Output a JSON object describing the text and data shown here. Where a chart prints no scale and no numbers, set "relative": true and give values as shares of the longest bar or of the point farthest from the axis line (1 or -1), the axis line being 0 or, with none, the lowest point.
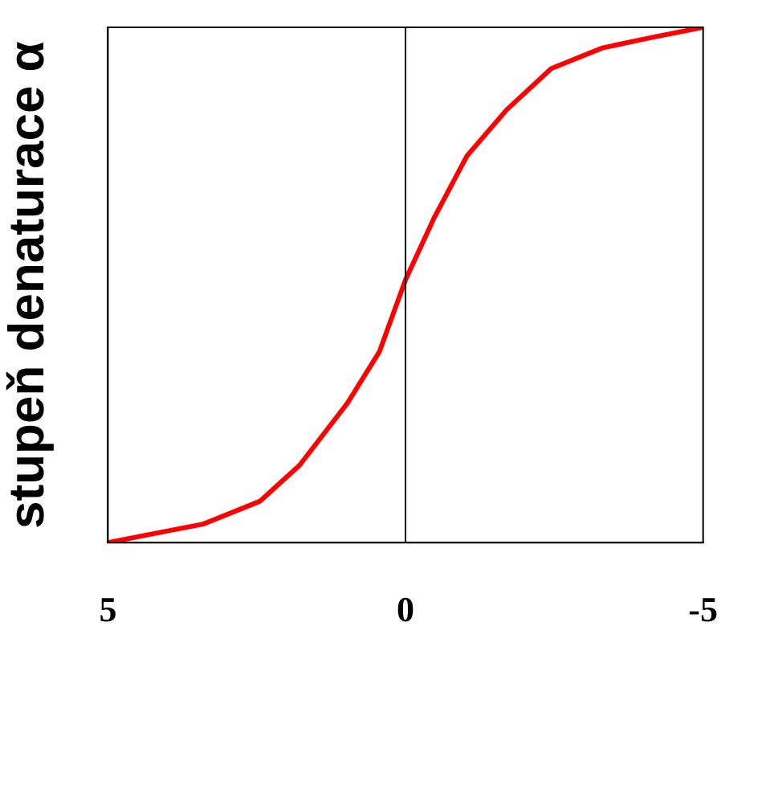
{
  "chart_data": {
    "type": "line",
    "ylabel": "stupeň denaturace α",
    "relative": true,
    "x": [
      5,
      4.2,
      3.4,
      2.45,
      1.78,
      0.98,
      0.44,
      0,
      -0.48,
      -1.03,
      -1.7,
      -2.45,
      -3.31,
      -4.12,
      -5
    ],
    "series": [
      {
        "color": "#ff0000",
        "values": [
          0,
          0.018,
          0.036,
          0.08,
          0.15,
          0.27,
          0.37,
          0.51,
          0.63,
          0.75,
          0.84,
          0.92,
          0.96,
          0.98,
          1
        ]
      }
    ],
    "xlim": [
      5,
      -5
    ],
    "xticks": [
      5,
      0,
      -5
    ],
    "grid": false,
    "legend": false,
    "marker": "none",
    "line_style": "solid",
    "tick_labels": "x",
    "ref_lines": [
      {
        "axis": "x",
        "value": 0,
        "color": "#000000"
      }
    ]
  }
}
